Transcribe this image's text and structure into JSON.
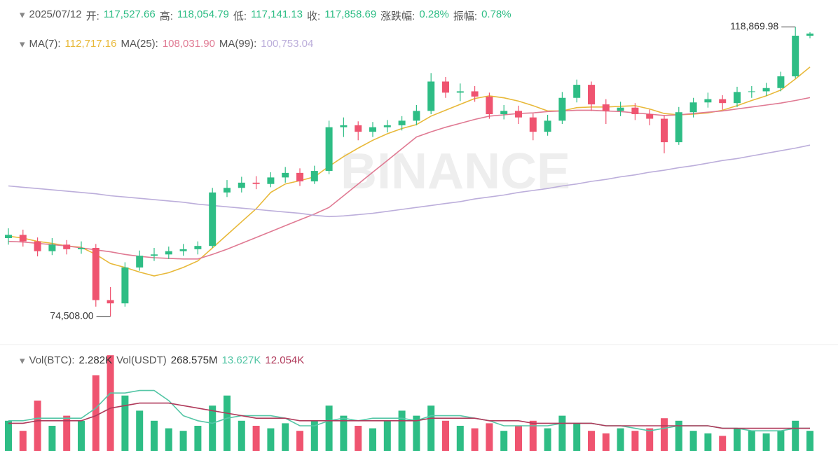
{
  "header": {
    "date": "2025/07/12",
    "fields": [
      {
        "label": "开:",
        "value": "117,527.66"
      },
      {
        "label": "高:",
        "value": "118,054.79"
      },
      {
        "label": "低:",
        "value": "117,141.13"
      },
      {
        "label": "收:",
        "value": "117,858.69"
      },
      {
        "label": "涨跌幅:",
        "value": "0.28%"
      },
      {
        "label": "振幅:",
        "value": "0.78%"
      }
    ]
  },
  "ma_legend": [
    {
      "label": "MA(7):",
      "value": "112,717.16"
    },
    {
      "label": "MA(25):",
      "value": "108,031.90"
    },
    {
      "label": "MA(99):",
      "value": "100,753.04"
    }
  ],
  "vol_legend": [
    {
      "label": "Vol(BTC):",
      "value": "2.282K"
    },
    {
      "label": "Vol(USDT)",
      "value": "268.575M"
    },
    {
      "label": "",
      "value": "13.627K"
    },
    {
      "label": "",
      "value": "12.054K"
    }
  ],
  "watermark": "BINANCE",
  "chart_data": {
    "type": "candlestick",
    "up_color": "#2ebd85",
    "down_color": "#ef5470",
    "ylim": [
      70400,
      123000
    ],
    "open": [
      86500,
      87000,
      86000,
      84500,
      85500,
      84800,
      85000,
      77000,
      76500,
      82000,
      83800,
      84000,
      84500,
      84800,
      85300,
      93500,
      94200,
      95000,
      94800,
      95800,
      96500,
      95200,
      96800,
      103500,
      103800,
      102800,
      103500,
      103800,
      104500,
      106000,
      110500,
      108800,
      109000,
      108200,
      105500,
      106000,
      105000,
      102800,
      104500,
      108000,
      110000,
      107000,
      106000,
      106500,
      105500,
      104800,
      101200,
      105800,
      107300,
      107800,
      107200,
      108900,
      109000,
      109500,
      111300,
      117527.66
    ],
    "high": [
      88000,
      87800,
      86600,
      86500,
      86200,
      86000,
      85600,
      79000,
      82800,
      84600,
      85000,
      85200,
      85600,
      86000,
      94200,
      95400,
      95900,
      96000,
      96600,
      97400,
      97200,
      97600,
      104500,
      105000,
      104400,
      104300,
      104600,
      105200,
      106900,
      111800,
      111200,
      110200,
      109800,
      108800,
      106900,
      106800,
      105600,
      105400,
      108900,
      110800,
      110500,
      107800,
      107400,
      107200,
      106200,
      105300,
      106600,
      108000,
      108800,
      108400,
      109700,
      109800,
      110300,
      112000,
      118869.98,
      118054.79
    ],
    "low": [
      85500,
      85200,
      83700,
      83900,
      84000,
      84100,
      76000,
      74508,
      76000,
      81500,
      83000,
      83300,
      83800,
      84000,
      85000,
      92800,
      93500,
      94000,
      94300,
      95000,
      94500,
      94800,
      96300,
      102000,
      101500,
      102000,
      102700,
      103000,
      103800,
      105500,
      108000,
      107500,
      107400,
      104800,
      104700,
      104000,
      101500,
      102200,
      104000,
      107300,
      106000,
      104000,
      105200,
      104600,
      103800,
      99500,
      100800,
      105000,
      106500,
      106200,
      106600,
      108000,
      108300,
      109000,
      111000,
      117141.13
    ],
    "close": [
      87000,
      86000,
      84500,
      85500,
      84800,
      85000,
      77000,
      76500,
      82000,
      83800,
      84000,
      84500,
      84800,
      85300,
      93500,
      94200,
      95000,
      94800,
      95800,
      96500,
      95200,
      96800,
      103500,
      103800,
      102800,
      103500,
      103800,
      104500,
      106000,
      110500,
      108800,
      109000,
      108200,
      105500,
      106000,
      105000,
      102800,
      104500,
      108000,
      110000,
      107000,
      106000,
      106500,
      105500,
      104800,
      101200,
      105800,
      107300,
      107800,
      107200,
      108900,
      109000,
      109500,
      111300,
      117527.66,
      117858.69
    ],
    "ma_series": [
      {
        "name": "MA(7)",
        "color": "#e8b93a",
        "values": [
          86800,
          86500,
          86000,
          85700,
          85300,
          85100,
          84000,
          82600,
          82000,
          81300,
          80700,
          81200,
          82000,
          83000,
          85000,
          87000,
          89000,
          91000,
          93500,
          94800,
          95300,
          95900,
          97500,
          99000,
          100300,
          101500,
          102500,
          103300,
          103900,
          105200,
          106100,
          107000,
          107900,
          108300,
          108000,
          107500,
          106800,
          106000,
          106000,
          106500,
          106600,
          106600,
          106700,
          106800,
          106300,
          105600,
          105400,
          105500,
          105700,
          106100,
          106800,
          107600,
          108300,
          109200,
          110900,
          112717.16
        ]
      },
      {
        "name": "MA(25)",
        "color": "#e07a93",
        "values": [
          86000,
          85900,
          85700,
          85500,
          85300,
          85000,
          84700,
          84400,
          84000,
          83700,
          83500,
          83400,
          83300,
          83300,
          84000,
          84800,
          85700,
          86600,
          87500,
          88400,
          89300,
          90200,
          91200,
          93000,
          94800,
          96600,
          98400,
          100200,
          102000,
          102800,
          103500,
          104100,
          104700,
          105200,
          105400,
          105600,
          105700,
          105900,
          106000,
          106100,
          106100,
          106000,
          105900,
          105700,
          105500,
          105300,
          105400,
          105600,
          105800,
          106000,
          106300,
          106600,
          106900,
          107200,
          107600,
          108031.9
        ]
      },
      {
        "name": "MA(99)",
        "color": "#bcaedb",
        "values": [
          94500,
          94300,
          94100,
          93900,
          93700,
          93500,
          93300,
          93000,
          92800,
          92600,
          92400,
          92200,
          92000,
          91700,
          91500,
          91300,
          91100,
          90900,
          90700,
          90500,
          90300,
          90000,
          89800,
          89900,
          90100,
          90300,
          90600,
          90900,
          91200,
          91500,
          91800,
          92100,
          92500,
          92800,
          93100,
          93500,
          93800,
          94100,
          94500,
          94800,
          95200,
          95500,
          95900,
          96200,
          96600,
          96900,
          97300,
          97600,
          98000,
          98400,
          98700,
          99100,
          99500,
          99900,
          100300,
          100753.04
        ]
      }
    ],
    "annotations": [
      {
        "label": "118,869.98",
        "value": 118869.98
      },
      {
        "label": "74,508.00",
        "value": 74508
      }
    ],
    "volume": {
      "ylim": [
        0,
        40
      ],
      "values": [
        12,
        8,
        20,
        10,
        14,
        12,
        30,
        38,
        22,
        16,
        12,
        9,
        8,
        10,
        18,
        22,
        12,
        10,
        9,
        11,
        8,
        12,
        18,
        14,
        10,
        9,
        12,
        16,
        14,
        18,
        12,
        10,
        9,
        11,
        8,
        10,
        12,
        9,
        14,
        11,
        8,
        7,
        9,
        8,
        9,
        13,
        12,
        8,
        7,
        6,
        9,
        8,
        7,
        8,
        12,
        8
      ],
      "ma_series": [
        {
          "color": "#55c6a6",
          "values": [
            12,
            12,
            13,
            13,
            13,
            13,
            17,
            23,
            23,
            24,
            24,
            20,
            14,
            12,
            11,
            13,
            14,
            14,
            14,
            13,
            10,
            10,
            12,
            13,
            12,
            13,
            13,
            13,
            12,
            14,
            14,
            14,
            13,
            12,
            10,
            10,
            10,
            10,
            11,
            11,
            11,
            10,
            10,
            9,
            8,
            9,
            10,
            10,
            10,
            9,
            9,
            8,
            8,
            8,
            9,
            9
          ]
        },
        {
          "color": "#b03a5b",
          "values": [
            11,
            11,
            12,
            12,
            12,
            12,
            14,
            17,
            18,
            19,
            19,
            19,
            18,
            17,
            16,
            15,
            14,
            13,
            13,
            13,
            12,
            12,
            12,
            12,
            12,
            12,
            12,
            12,
            12,
            13,
            13,
            13,
            13,
            12,
            12,
            12,
            11,
            11,
            11,
            11,
            11,
            10,
            10,
            10,
            10,
            10,
            10,
            10,
            10,
            9,
            9,
            9,
            9,
            9,
            9,
            9
          ]
        }
      ]
    }
  }
}
